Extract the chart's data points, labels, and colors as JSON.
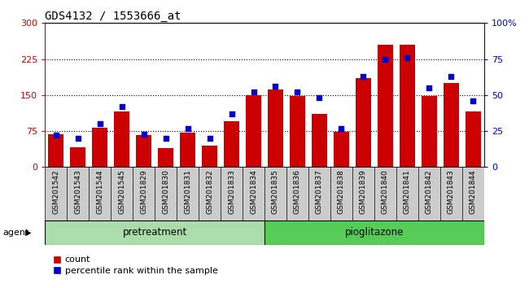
{
  "title": "GDS4132 / 1553666_at",
  "categories": [
    "GSM201542",
    "GSM201543",
    "GSM201544",
    "GSM201545",
    "GSM201829",
    "GSM201830",
    "GSM201831",
    "GSM201832",
    "GSM201833",
    "GSM201834",
    "GSM201835",
    "GSM201836",
    "GSM201837",
    "GSM201838",
    "GSM201839",
    "GSM201840",
    "GSM201841",
    "GSM201842",
    "GSM201843",
    "GSM201844"
  ],
  "counts": [
    68,
    42,
    82,
    115,
    67,
    40,
    72,
    45,
    95,
    150,
    162,
    148,
    110,
    73,
    185,
    255,
    255,
    148,
    175,
    115
  ],
  "percentiles": [
    22,
    20,
    30,
    42,
    23,
    20,
    27,
    20,
    37,
    52,
    56,
    52,
    48,
    27,
    63,
    75,
    76,
    55,
    63,
    46
  ],
  "bar_color": "#cc0000",
  "dot_color": "#0000cc",
  "ylim_left": [
    0,
    300
  ],
  "ylim_right": [
    0,
    100
  ],
  "yticks_left": [
    0,
    75,
    150,
    225,
    300
  ],
  "yticks_right": [
    0,
    25,
    50,
    75,
    100
  ],
  "pretreatment_count": 10,
  "group_labels": [
    "pretreatment",
    "pioglitazone"
  ],
  "pretreat_color": "#aaddaa",
  "pio_color": "#55cc55",
  "xlabel_agent": "agent",
  "legend_count_label": "count",
  "legend_pct_label": "percentile rank within the sample",
  "title_fontsize": 10,
  "plot_bg_color": "#ffffff",
  "right_axis_color": "#0000cc",
  "left_axis_color": "#cc0000",
  "grid_color": "black",
  "grid_linestyle": ":",
  "grid_linewidth": 0.8
}
